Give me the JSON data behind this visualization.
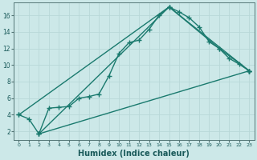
{
  "xlabel": "Humidex (Indice chaleur)",
  "background_color": "#cce8e8",
  "grid_color": "#b0d8d8",
  "line_color": "#1a7a6e",
  "xlim": [
    -0.5,
    23.5
  ],
  "ylim": [
    1,
    17.5
  ],
  "yticks": [
    2,
    4,
    6,
    8,
    10,
    12,
    14,
    16
  ],
  "xticks": [
    0,
    1,
    2,
    3,
    4,
    5,
    6,
    7,
    8,
    9,
    10,
    11,
    12,
    13,
    14,
    15,
    16,
    17,
    18,
    19,
    20,
    21,
    22,
    23
  ],
  "series1_x": [
    0,
    1,
    2,
    3,
    4,
    5,
    6,
    7,
    8,
    9,
    10,
    11,
    12,
    13,
    14,
    15,
    16,
    17,
    18,
    19,
    20,
    21,
    22,
    23
  ],
  "series1_y": [
    4.0,
    3.5,
    1.7,
    4.8,
    4.9,
    5.0,
    6.0,
    6.2,
    6.5,
    8.7,
    11.4,
    12.7,
    13.0,
    14.3,
    16.0,
    17.0,
    16.4,
    15.7,
    14.6,
    12.8,
    12.0,
    10.8,
    10.1,
    9.3
  ],
  "series2_x": [
    0,
    15,
    20,
    23
  ],
  "series2_y": [
    4.0,
    17.0,
    12.0,
    9.3
  ],
  "series3_x": [
    2,
    15,
    23
  ],
  "series3_y": [
    1.7,
    17.0,
    9.3
  ],
  "series4_x": [
    2,
    23
  ],
  "series4_y": [
    1.7,
    9.3
  ],
  "marker": "+",
  "markersize": 4,
  "linewidth": 1.0
}
